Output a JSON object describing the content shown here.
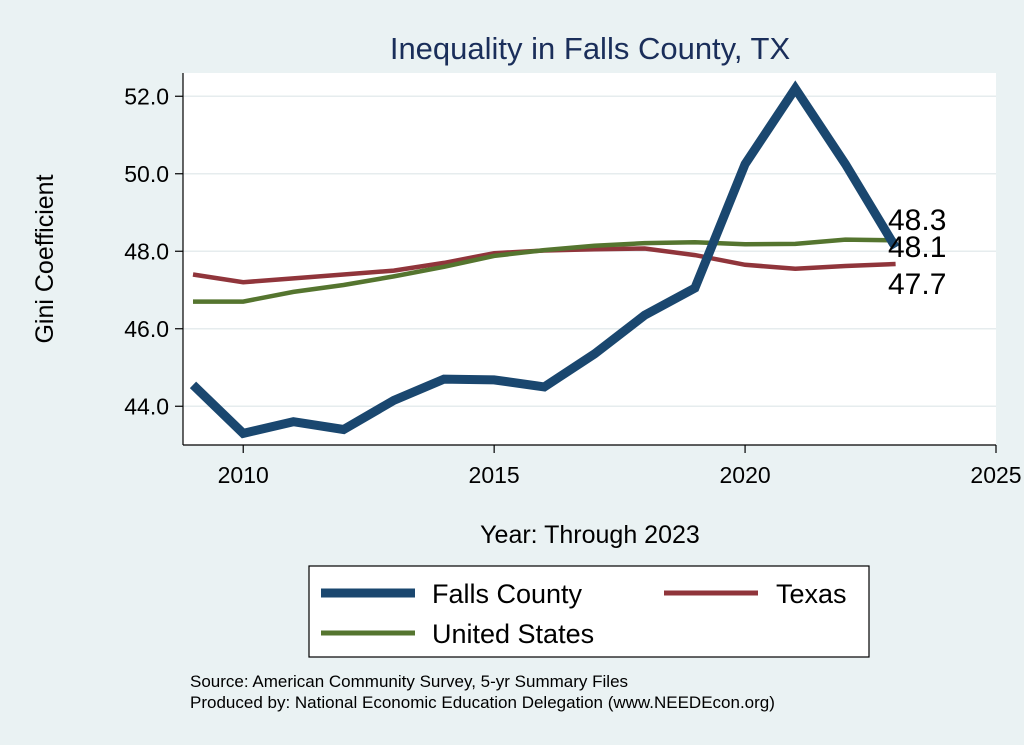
{
  "colors": {
    "background": "#eaf2f3",
    "plot_background": "#ffffff",
    "grid": "#e6ecee",
    "falls_county": "#1a476f",
    "texas": "#90353b",
    "united_states": "#55752f",
    "title": "#1a2e5a"
  },
  "chart_data": {
    "type": "line",
    "title": "Inequality in Falls County, TX",
    "xlabel": "Year: Through 2023",
    "ylabel": "Gini Coefficient",
    "xlim": [
      2008.8,
      2025
    ],
    "ylim": [
      43.0,
      52.6
    ],
    "x_ticks": [
      2010,
      2015,
      2020,
      2025
    ],
    "y_ticks": [
      44.0,
      46.0,
      48.0,
      50.0,
      52.0
    ],
    "x_tick_labels": [
      "2010",
      "2015",
      "2020",
      "2025"
    ],
    "y_tick_labels": [
      "44.0",
      "46.0",
      "48.0",
      "50.0",
      "52.0"
    ],
    "grid": true,
    "legend_position": "bottom",
    "x": [
      2009,
      2010,
      2011,
      2012,
      2013,
      2014,
      2015,
      2016,
      2017,
      2018,
      2019,
      2020,
      2021,
      2022,
      2023
    ],
    "series": [
      {
        "name": "Falls County",
        "color": "#1a476f",
        "values": [
          44.55,
          43.3,
          43.6,
          43.4,
          44.15,
          44.7,
          44.68,
          44.5,
          45.35,
          46.35,
          47.05,
          50.25,
          52.2,
          50.25,
          48.1
        ]
      },
      {
        "name": "Texas",
        "color": "#90353b",
        "values": [
          47.4,
          47.2,
          47.3,
          47.4,
          47.5,
          47.7,
          47.95,
          48.02,
          48.05,
          48.07,
          47.9,
          47.65,
          47.55,
          47.62,
          47.67
        ]
      },
      {
        "name": "United States",
        "color": "#55752f",
        "values": [
          46.7,
          46.7,
          46.95,
          47.13,
          47.35,
          47.6,
          47.88,
          48.03,
          48.14,
          48.21,
          48.23,
          48.18,
          48.19,
          48.3,
          48.28
        ]
      }
    ],
    "end_labels": [
      "48.3",
      "48.1",
      "47.7"
    ]
  },
  "legend": {
    "falls_county": "Falls County",
    "texas": "Texas",
    "united_states": "United States"
  },
  "notes": {
    "source": "Source: American Community Survey, 5-yr Summary Files",
    "produced_by": "Produced by: National Economic Education Delegation (www.NEEDEcon.org)"
  }
}
